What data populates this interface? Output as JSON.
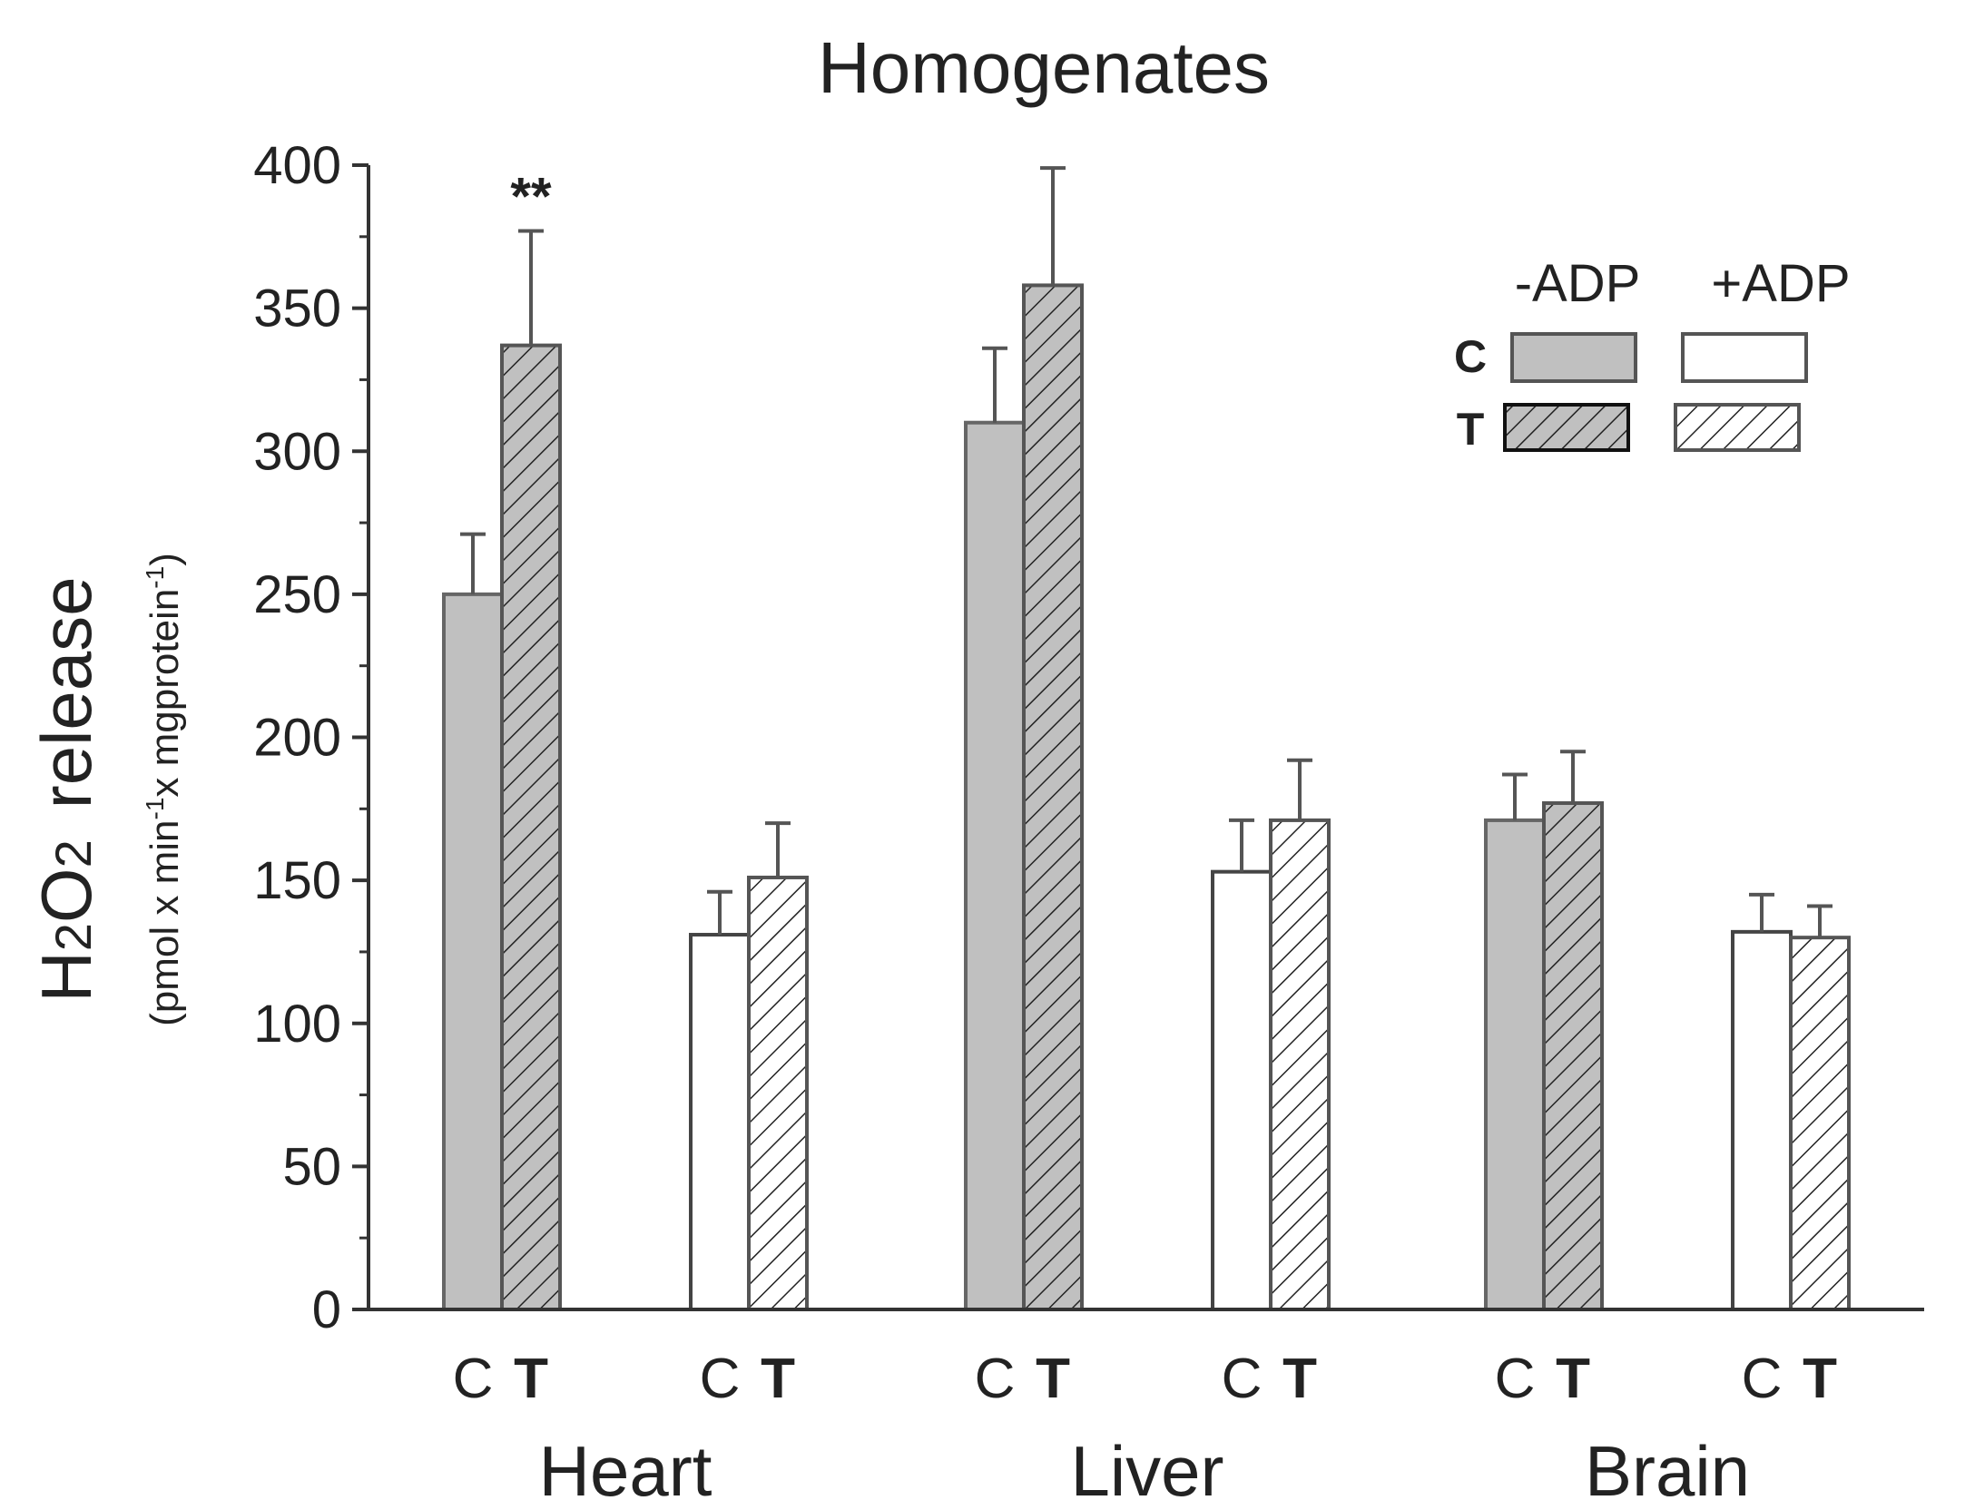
{
  "chart_data": {
    "type": "bar",
    "title": "Homogenates",
    "ylabel": "H2O2 release",
    "ylabel_main": "H",
    "ylabel_sub2": "2",
    "ylabel_o": "O",
    "ylabel_sub2b": "2",
    "ylabel_rest": "release",
    "ylabel_units": {
      "p1": "(pmol x min",
      "e1": "-1",
      "p2": "x mgprotein",
      "e2": "-1",
      "p3": ")"
    },
    "ylim": [
      0,
      400
    ],
    "yticks": [
      0,
      50,
      100,
      150,
      200,
      250,
      300,
      350,
      400
    ],
    "groups": [
      "Heart",
      "Liver",
      "Brain"
    ],
    "conditions": [
      "-ADP",
      "+ADP"
    ],
    "bar_labels": [
      "C",
      "T"
    ],
    "series": [
      {
        "name": "C -ADP",
        "values": [
          250,
          310,
          171
        ],
        "errors": [
          21,
          26,
          16
        ]
      },
      {
        "name": "T -ADP",
        "values": [
          337,
          358,
          177
        ],
        "errors": [
          40,
          41,
          18
        ]
      },
      {
        "name": "C +ADP",
        "values": [
          131,
          153,
          132
        ],
        "errors": [
          15,
          18,
          13
        ]
      },
      {
        "name": "T +ADP",
        "values": [
          151,
          171,
          130
        ],
        "errors": [
          19,
          21,
          11
        ]
      }
    ],
    "annotations": [
      {
        "text": "**",
        "group": "Heart",
        "series": "T -ADP"
      }
    ],
    "legend": {
      "placement": "top-right",
      "columns": [
        "-ADP",
        "+ADP"
      ],
      "rows": [
        "C",
        "T"
      ]
    },
    "colors": {
      "filled": "#c0c0c0",
      "open": "#ffffff",
      "edge": "#555555",
      "hatch": "#222222"
    }
  }
}
